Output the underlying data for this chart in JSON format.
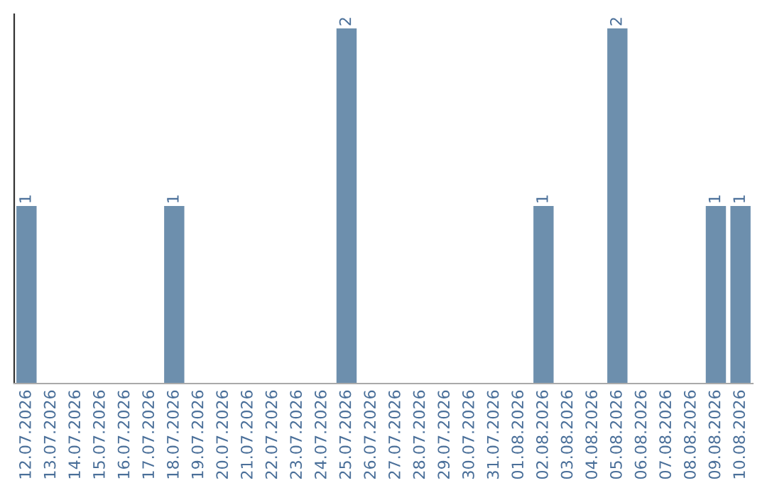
{
  "chart_data": {
    "type": "bar",
    "categories": [
      "12.07.2026",
      "13.07.2026",
      "14.07.2026",
      "15.07.2026",
      "16.07.2026",
      "17.07.2026",
      "18.07.2026",
      "19.07.2026",
      "20.07.2026",
      "21.07.2026",
      "22.07.2026",
      "23.07.2026",
      "24.07.2026",
      "25.07.2026",
      "26.07.2026",
      "27.07.2026",
      "28.07.2026",
      "29.07.2026",
      "30.07.2026",
      "31.07.2026",
      "01.08.2026",
      "02.08.2026",
      "03.08.2026",
      "04.08.2026",
      "05.08.2026",
      "06.08.2026",
      "07.08.2026",
      "08.08.2026",
      "09.08.2026",
      "10.08.2026"
    ],
    "values": [
      1,
      0,
      0,
      0,
      0,
      0,
      1,
      0,
      0,
      0,
      0,
      0,
      0,
      2,
      0,
      0,
      0,
      0,
      0,
      0,
      0,
      1,
      0,
      0,
      2,
      0,
      0,
      0,
      1,
      1
    ],
    "value_labels": [
      "1",
      null,
      null,
      null,
      null,
      null,
      "1",
      null,
      null,
      null,
      null,
      null,
      null,
      "2",
      null,
      null,
      null,
      null,
      null,
      null,
      null,
      "1",
      null,
      null,
      "2",
      null,
      null,
      null,
      "1",
      "1"
    ],
    "color": "#6d8fad",
    "ylim": [
      0,
      2.08
    ],
    "tick_labels": "x",
    "grid": false,
    "legend": false
  }
}
